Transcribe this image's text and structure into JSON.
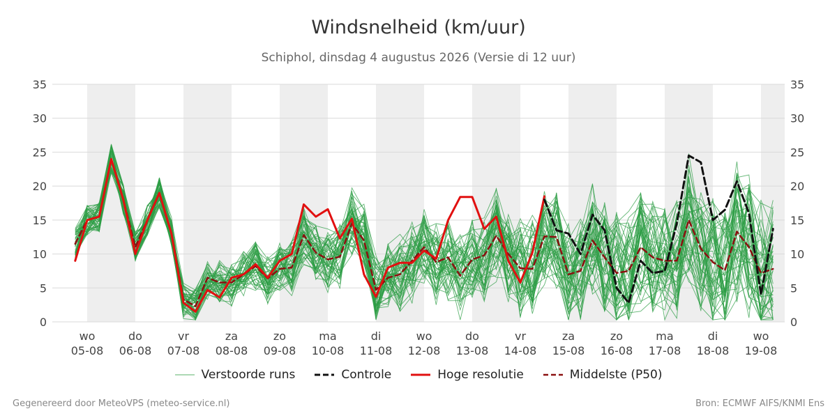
{
  "header": {
    "title": "Windsnelheid (km/uur)",
    "subtitle": "Schiphol, dinsdag  4 augustus 2026 (Versie di 12 uur)"
  },
  "legend": {
    "members": "Verstoorde runs",
    "control": "Controle",
    "highres": "Hoge resolutie",
    "median": "Middelste (P50)"
  },
  "footer": {
    "left": "Gegenereerd door MeteoVPS (meteo-service.nl)",
    "right": "Bron: ECMWF AIFS/KNMI Ens"
  },
  "colors": {
    "members": "#2e9e45",
    "control": "#111111",
    "highres": "#e11010",
    "median": "#8b1010",
    "shade": "#eeeeee",
    "grid": "#d9d9d9"
  },
  "chart_data": {
    "type": "line",
    "title": "Windsnelheid (km/uur)",
    "ylim": [
      0,
      35
    ],
    "yticks": [
      0,
      5,
      10,
      15,
      20,
      25,
      30,
      35
    ],
    "grid": true,
    "legend_position": "bottom",
    "x_ticks": [
      {
        "day": "wo",
        "date": "05-08"
      },
      {
        "day": "do",
        "date": "06-08"
      },
      {
        "day": "vr",
        "date": "07-08"
      },
      {
        "day": "za",
        "date": "08-08"
      },
      {
        "day": "zo",
        "date": "09-08"
      },
      {
        "day": "ma",
        "date": "10-08"
      },
      {
        "day": "di",
        "date": "11-08"
      },
      {
        "day": "wo",
        "date": "12-08"
      },
      {
        "day": "do",
        "date": "13-08"
      },
      {
        "day": "vr",
        "date": "14-08"
      },
      {
        "day": "za",
        "date": "15-08"
      },
      {
        "day": "zo",
        "date": "16-08"
      },
      {
        "day": "ma",
        "date": "17-08"
      },
      {
        "day": "di",
        "date": "18-08"
      },
      {
        "day": "wo",
        "date": "19-08"
      }
    ],
    "x_unit": "days after 4 augustus 2026 00 uur",
    "series": [
      {
        "name": "Hoge resolutie",
        "x": [
          -0.25,
          0,
          0.25,
          0.5,
          0.75,
          1,
          1.25,
          1.5,
          1.75,
          2,
          2.25,
          2.5,
          2.75,
          3,
          3.25,
          3.5,
          3.75,
          4,
          4.25,
          4.5,
          4.75,
          5,
          5.25,
          5.5,
          5.75,
          6,
          6.25,
          6.5,
          6.75,
          7,
          7.25,
          7.5,
          7.75,
          8,
          8.25,
          8.5,
          8.75,
          9,
          9.25,
          9.5
        ],
        "values": [
          9,
          15,
          15.5,
          24,
          18,
          10,
          15,
          19,
          13,
          2.8,
          1.5,
          4.7,
          3.6,
          6.5,
          7,
          8.5,
          6.5,
          9,
          10,
          17.3,
          15.5,
          16.6,
          12.3,
          15.2,
          7,
          3.7,
          8,
          8.7,
          8.7,
          10.5,
          9.3,
          15,
          18.4,
          18.4,
          13.7,
          15.5,
          9,
          5.8,
          10.2,
          18.5
        ]
      },
      {
        "name": "Controle",
        "x": [
          9.5,
          9.75,
          10,
          10.25,
          10.5,
          10.75,
          11,
          11.25,
          11.5,
          11.75,
          12,
          12.25,
          12.5,
          12.75,
          13,
          13.25,
          13.5,
          13.75,
          14,
          14.25
        ],
        "values": [
          18,
          13.5,
          13,
          10,
          15.8,
          13.5,
          5,
          2.8,
          9,
          7.2,
          7.5,
          14.5,
          24.5,
          23.5,
          15,
          16.5,
          20.7,
          16,
          4,
          13.7
        ]
      },
      {
        "name": "Middelste (P50)",
        "x": [
          -0.25,
          0,
          0.25,
          0.5,
          0.75,
          1,
          1.25,
          1.5,
          1.75,
          2,
          2.25,
          2.5,
          2.75,
          3,
          3.25,
          3.5,
          3.75,
          4,
          4.25,
          4.5,
          4.75,
          5,
          5.25,
          5.5,
          5.75,
          6,
          6.25,
          6.5,
          6.75,
          7,
          7.25,
          7.5,
          7.75,
          8,
          8.25,
          8.5,
          8.75,
          9,
          9.25,
          9.5,
          9.75,
          10,
          10.25,
          10.5,
          10.75,
          11,
          11.25,
          11.5,
          11.75,
          12,
          12.25,
          12.5,
          12.75,
          13,
          13.25,
          13.5,
          13.75,
          14,
          14.25
        ],
        "values": [
          11.5,
          15,
          15.5,
          24,
          18,
          11,
          15,
          19,
          13,
          3.3,
          2.3,
          6.5,
          5.8,
          5.8,
          7,
          8.2,
          6.4,
          7.8,
          8,
          12.8,
          10.2,
          9.2,
          9.6,
          14.5,
          12,
          4.7,
          6.5,
          7,
          9,
          11,
          8.8,
          9.5,
          6.8,
          9.2,
          9.8,
          12.7,
          10,
          7.9,
          7.8,
          12.6,
          12.5,
          7,
          7.5,
          12,
          9.5,
          7.2,
          7.5,
          11,
          9.5,
          9,
          9,
          15,
          10.8,
          8.8,
          7.6,
          13.3,
          11,
          7.2,
          7.8
        ]
      }
    ]
  }
}
